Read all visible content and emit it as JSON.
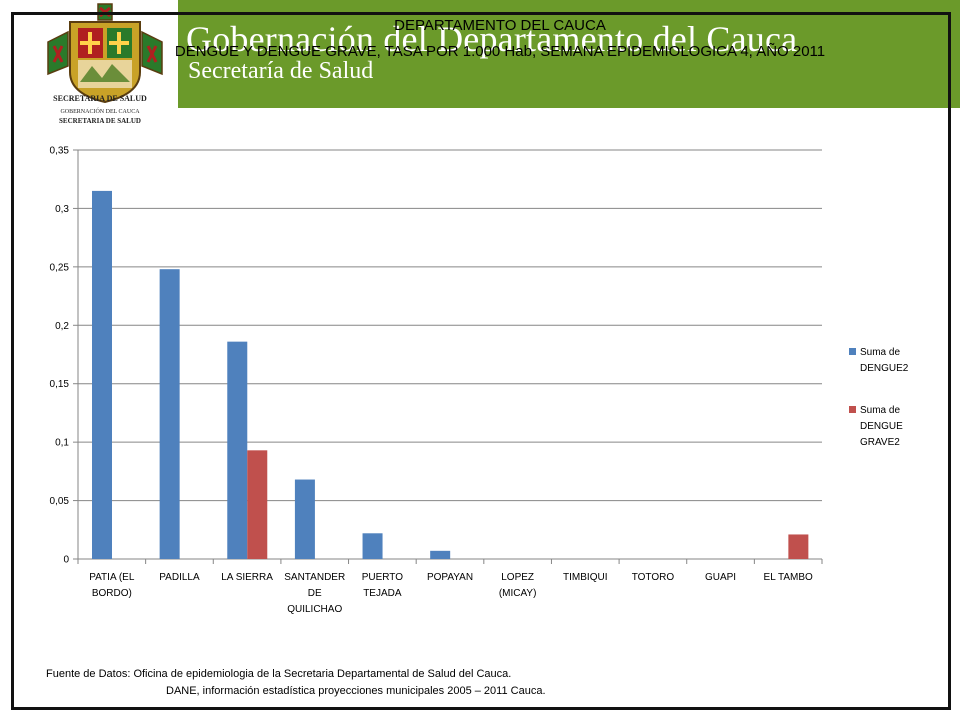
{
  "header": {
    "organization": "Gobernación del Departamento del Cauca",
    "subtitle": "Secretaría de Salud",
    "logo_caption_1": "SECRETARIA DE SALUD",
    "logo_caption_2": "GOBERNACIÓN DEL CAUCA",
    "logo_caption_3": "SECRETARIA DE SALUD"
  },
  "colors": {
    "header": "#6b9a2a",
    "series1": "#4f81bd",
    "series2": "#c0504d",
    "grid": "#868686"
  },
  "chart_data": {
    "type": "bar",
    "title_line1": "DEPARTAMENTO DEL CAUCA",
    "title_line2": "DENGUE Y DENGUE GRAVE, TASA POR 1.000 Hab, SEMANA EPIDEMIOLOGICA 4, AÑO 2011",
    "categories": [
      [
        "PATIA (EL",
        "BORDO)"
      ],
      [
        "PADILLA"
      ],
      [
        "LA SIERRA"
      ],
      [
        "SANTANDER",
        "DE",
        "QUILICHAO"
      ],
      [
        "PUERTO",
        "TEJADA"
      ],
      [
        "POPAYAN"
      ],
      [
        "LOPEZ",
        "(MICAY)"
      ],
      [
        "TIMBIQUI"
      ],
      [
        "TOTORO"
      ],
      [
        "GUAPI"
      ],
      [
        "EL TAMBO"
      ]
    ],
    "series": [
      {
        "name": [
          "Suma de",
          "DENGUE2"
        ],
        "color": "#4f81bd",
        "values": [
          0.315,
          0.248,
          0.186,
          0.068,
          0.022,
          0.007,
          0,
          0,
          0,
          0,
          0
        ]
      },
      {
        "name": [
          "Suma de",
          "DENGUE",
          "GRAVE2"
        ],
        "color": "#c0504d",
        "values": [
          0,
          0,
          0.093,
          0,
          0,
          0,
          0,
          0,
          0,
          0,
          0.021
        ]
      }
    ],
    "y_ticks": [
      "0",
      "0,05",
      "0,1",
      "0,15",
      "0,2",
      "0,25",
      "0,3",
      "0,35"
    ],
    "ylim": [
      0,
      0.35
    ],
    "grid": true,
    "legend": "right"
  },
  "source": {
    "line1": "Fuente  de Datos: Oficina de epidemiologia de la Secretaria Departamental de Salud del Cauca.",
    "line2": "DANE, información estadística proyecciones municipales 2005 – 2011 Cauca."
  }
}
